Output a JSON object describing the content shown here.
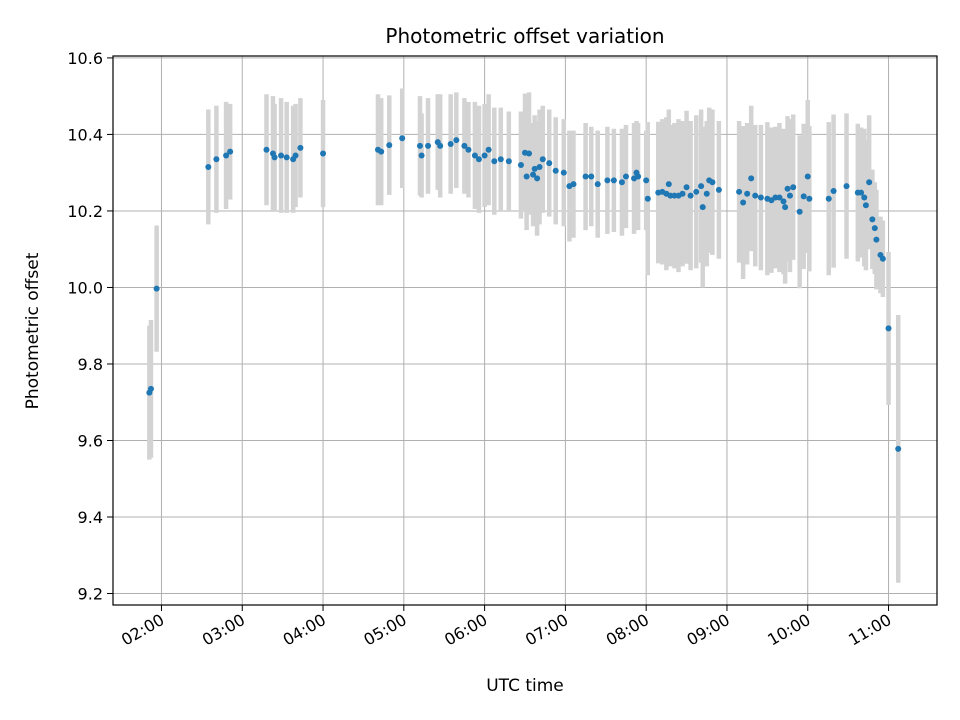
{
  "chart_data": {
    "type": "scatter",
    "title": "Photometric offset variation",
    "xlabel": "UTC time",
    "ylabel": "Photometric offset",
    "x_unit": "hours (UTC)",
    "xlim": [
      1.4,
      11.6
    ],
    "ylim": [
      9.17,
      10.605
    ],
    "x_ticks": [
      2,
      3,
      4,
      5,
      6,
      7,
      8,
      9,
      10,
      11
    ],
    "x_tick_labels": [
      "02:00",
      "03:00",
      "04:00",
      "05:00",
      "06:00",
      "07:00",
      "08:00",
      "09:00",
      "10:00",
      "11:00"
    ],
    "y_ticks": [
      9.2,
      9.4,
      9.6,
      9.8,
      10.0,
      10.2,
      10.4,
      10.6
    ],
    "y_tick_labels": [
      "9.2",
      "9.4",
      "9.6",
      "9.8",
      "10.0",
      "10.2",
      "10.4",
      "10.6"
    ],
    "grid": true,
    "point_color": "#1f77b4",
    "errorbar_color": "#d3d3d3",
    "points": [
      [
        1.85,
        9.725,
        0.175
      ],
      [
        1.87,
        9.735,
        0.18
      ],
      [
        1.94,
        9.997,
        0.165
      ],
      [
        2.58,
        10.315,
        0.15
      ],
      [
        2.68,
        10.335,
        0.14
      ],
      [
        2.8,
        10.345,
        0.14
      ],
      [
        2.85,
        10.355,
        0.125
      ],
      [
        3.3,
        10.36,
        0.145
      ],
      [
        3.38,
        10.35,
        0.15
      ],
      [
        3.4,
        10.34,
        0.14
      ],
      [
        3.48,
        10.345,
        0.15
      ],
      [
        3.55,
        10.34,
        0.145
      ],
      [
        3.63,
        10.335,
        0.14
      ],
      [
        3.66,
        10.345,
        0.135
      ],
      [
        3.72,
        10.365,
        0.13
      ],
      [
        4.0,
        10.35,
        0.14
      ],
      [
        4.68,
        10.36,
        0.145
      ],
      [
        4.72,
        10.355,
        0.14
      ],
      [
        4.82,
        10.372,
        0.13
      ],
      [
        4.98,
        10.39,
        0.13
      ],
      [
        5.2,
        10.37,
        0.13
      ],
      [
        5.22,
        10.345,
        0.11
      ],
      [
        5.3,
        10.37,
        0.125
      ],
      [
        5.42,
        10.38,
        0.125
      ],
      [
        5.45,
        10.37,
        0.135
      ],
      [
        5.58,
        10.375,
        0.13
      ],
      [
        5.65,
        10.385,
        0.125
      ],
      [
        5.75,
        10.37,
        0.125
      ],
      [
        5.8,
        10.36,
        0.125
      ],
      [
        5.88,
        10.345,
        0.14
      ],
      [
        5.93,
        10.335,
        0.14
      ],
      [
        6.0,
        10.345,
        0.135
      ],
      [
        6.05,
        10.36,
        0.145
      ],
      [
        6.12,
        10.33,
        0.14
      ],
      [
        6.2,
        10.335,
        0.135
      ],
      [
        6.3,
        10.33,
        0.13
      ],
      [
        6.45,
        10.32,
        0.14
      ],
      [
        6.5,
        10.352,
        0.155
      ],
      [
        6.52,
        10.29,
        0.14
      ],
      [
        6.55,
        10.35,
        0.16
      ],
      [
        6.6,
        10.295,
        0.135
      ],
      [
        6.62,
        10.31,
        0.14
      ],
      [
        6.65,
        10.285,
        0.15
      ],
      [
        6.68,
        10.315,
        0.15
      ],
      [
        6.72,
        10.335,
        0.14
      ],
      [
        6.8,
        10.325,
        0.14
      ],
      [
        6.88,
        10.305,
        0.14
      ],
      [
        6.98,
        10.3,
        0.14
      ],
      [
        7.05,
        10.265,
        0.145
      ],
      [
        7.1,
        10.27,
        0.14
      ],
      [
        7.25,
        10.29,
        0.14
      ],
      [
        7.32,
        10.29,
        0.13
      ],
      [
        7.4,
        10.27,
        0.14
      ],
      [
        7.52,
        10.28,
        0.14
      ],
      [
        7.6,
        10.28,
        0.135
      ],
      [
        7.7,
        10.275,
        0.14
      ],
      [
        7.75,
        10.29,
        0.135
      ],
      [
        7.85,
        10.285,
        0.145
      ],
      [
        7.88,
        10.3,
        0.135
      ],
      [
        7.9,
        10.29,
        0.14
      ],
      [
        8.0,
        10.28,
        0.13
      ],
      [
        8.02,
        10.232,
        0.2
      ],
      [
        8.15,
        10.248,
        0.185
      ],
      [
        8.2,
        10.25,
        0.19
      ],
      [
        8.25,
        10.245,
        0.2
      ],
      [
        8.28,
        10.27,
        0.195
      ],
      [
        8.3,
        10.24,
        0.185
      ],
      [
        8.35,
        10.24,
        0.19
      ],
      [
        8.4,
        10.24,
        0.2
      ],
      [
        8.45,
        10.245,
        0.19
      ],
      [
        8.5,
        10.262,
        0.2
      ],
      [
        8.55,
        10.24,
        0.195
      ],
      [
        8.62,
        10.25,
        0.2
      ],
      [
        8.68,
        10.265,
        0.2
      ],
      [
        8.7,
        10.21,
        0.21
      ],
      [
        8.75,
        10.245,
        0.19
      ],
      [
        8.78,
        10.28,
        0.19
      ],
      [
        8.82,
        10.275,
        0.19
      ],
      [
        8.9,
        10.255,
        0.18
      ],
      [
        9.15,
        10.25,
        0.185
      ],
      [
        9.2,
        10.222,
        0.2
      ],
      [
        9.25,
        10.245,
        0.185
      ],
      [
        9.3,
        10.285,
        0.19
      ],
      [
        9.35,
        10.24,
        0.185
      ],
      [
        9.42,
        10.235,
        0.19
      ],
      [
        9.5,
        10.232,
        0.2
      ],
      [
        9.55,
        10.228,
        0.19
      ],
      [
        9.6,
        10.235,
        0.185
      ],
      [
        9.65,
        10.235,
        0.195
      ],
      [
        9.7,
        10.225,
        0.19
      ],
      [
        9.72,
        10.21,
        0.2
      ],
      [
        9.75,
        10.258,
        0.19
      ],
      [
        9.78,
        10.24,
        0.2
      ],
      [
        9.82,
        10.262,
        0.19
      ],
      [
        9.9,
        10.198,
        0.2
      ],
      [
        9.95,
        10.238,
        0.19
      ],
      [
        10.0,
        10.29,
        0.2
      ],
      [
        10.02,
        10.232,
        0.19
      ],
      [
        10.26,
        10.232,
        0.2
      ],
      [
        10.32,
        10.252,
        0.2
      ],
      [
        10.48,
        10.265,
        0.19
      ],
      [
        10.62,
        10.248,
        0.18
      ],
      [
        10.66,
        10.248,
        0.17
      ],
      [
        10.7,
        10.235,
        0.18
      ],
      [
        10.72,
        10.215,
        0.17
      ],
      [
        10.76,
        10.275,
        0.175
      ],
      [
        10.8,
        10.178,
        0.13
      ],
      [
        10.83,
        10.155,
        0.12
      ],
      [
        10.85,
        10.125,
        0.13
      ],
      [
        10.9,
        10.085,
        0.1
      ],
      [
        10.93,
        10.075,
        0.1
      ],
      [
        11.0,
        9.893,
        0.2
      ],
      [
        11.12,
        9.578,
        0.35
      ]
    ]
  }
}
